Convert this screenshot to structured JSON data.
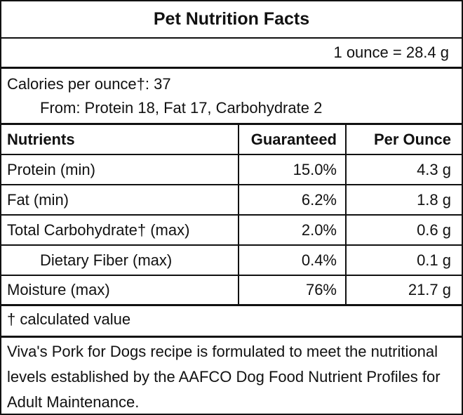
{
  "title": "Pet Nutrition Facts",
  "serving": "1 ounce = 28.4 g",
  "calories": {
    "line": "Calories per ounce†: 37",
    "from": "From: Protein 18, Fat 17, Carbohydrate 2"
  },
  "table": {
    "headers": [
      "Nutrients",
      "Guaranteed",
      "Per Ounce"
    ],
    "rows": [
      {
        "name": "Protein (min)",
        "guaranteed": "15.0%",
        "per_ounce": "4.3 g"
      },
      {
        "name": "Fat (min)",
        "guaranteed": "6.2%",
        "per_ounce": "1.8 g"
      },
      {
        "name": "Total Carbohydrate† (max)",
        "guaranteed": "2.0%",
        "per_ounce": "0.6 g"
      },
      {
        "name": "Dietary Fiber (max)",
        "guaranteed": "0.4%",
        "per_ounce": "0.1 g"
      },
      {
        "name": "Moisture (max)",
        "guaranteed": "76%",
        "per_ounce": "21.7 g"
      }
    ]
  },
  "footnote": "† calculated value",
  "statement": "Viva's Pork for Dogs recipe is formulated to meet the nutritional levels established by the AAFCO Dog Food Nutrient Profiles for Adult Maintenance."
}
